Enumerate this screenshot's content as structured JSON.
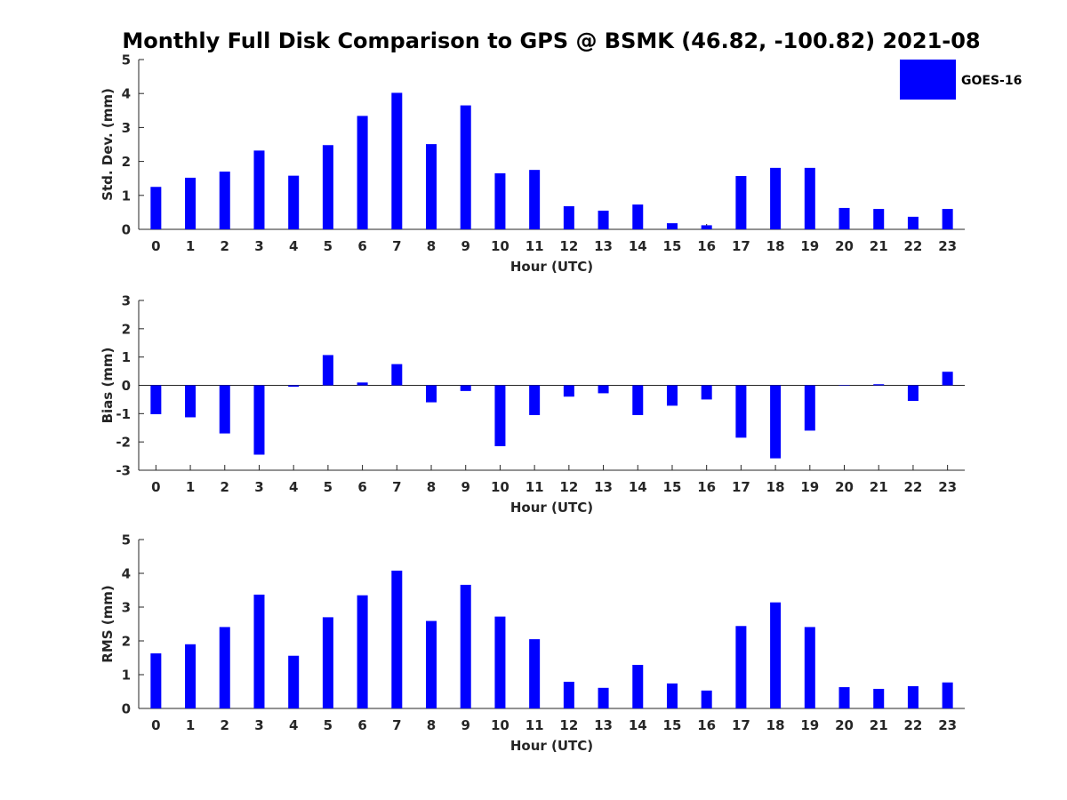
{
  "title": "Monthly Full Disk Comparison to GPS @ BSMK (46.82, -100.82) 2021-08",
  "legend": {
    "label": "GOES-16",
    "color": "#0000ff",
    "position": "top-right"
  },
  "chart_data": [
    {
      "type": "bar",
      "ylabel": "Std. Dev. (mm)",
      "xlabel": "Hour (UTC)",
      "ylim": [
        0,
        5
      ],
      "yticks": [
        0,
        1,
        2,
        3,
        4,
        5
      ],
      "categories": [
        "0",
        "1",
        "2",
        "3",
        "4",
        "5",
        "6",
        "7",
        "8",
        "9",
        "10",
        "11",
        "12",
        "13",
        "14",
        "15",
        "16",
        "17",
        "18",
        "19",
        "20",
        "21",
        "22",
        "23"
      ],
      "series": [
        {
          "name": "GOES-16",
          "color": "#0000ff",
          "values": [
            1.25,
            1.52,
            1.7,
            2.32,
            1.58,
            2.48,
            3.34,
            4.02,
            2.51,
            3.65,
            1.65,
            1.75,
            0.68,
            0.55,
            0.73,
            0.18,
            0.12,
            1.57,
            1.81,
            1.81,
            0.63,
            0.6,
            0.37,
            0.6
          ]
        }
      ]
    },
    {
      "type": "bar",
      "ylabel": "Bias (mm)",
      "xlabel": "Hour (UTC)",
      "ylim": [
        -3,
        3
      ],
      "yticks": [
        -3,
        -2,
        -1,
        0,
        1,
        2,
        3
      ],
      "categories": [
        "0",
        "1",
        "2",
        "3",
        "4",
        "5",
        "6",
        "7",
        "8",
        "9",
        "10",
        "11",
        "12",
        "13",
        "14",
        "15",
        "16",
        "17",
        "18",
        "19",
        "20",
        "21",
        "22",
        "23"
      ],
      "series": [
        {
          "name": "GOES-16",
          "color": "#0000ff",
          "values": [
            -1.02,
            -1.13,
            -1.7,
            -2.45,
            -0.05,
            1.07,
            0.1,
            0.75,
            -0.6,
            -0.2,
            -2.15,
            -1.05,
            -0.4,
            -0.28,
            -1.05,
            -0.72,
            -0.5,
            -1.85,
            -2.58,
            -1.6,
            0.0,
            0.04,
            -0.55,
            0.48
          ]
        }
      ]
    },
    {
      "type": "bar",
      "ylabel": "RMS (mm)",
      "xlabel": "Hour (UTC)",
      "ylim": [
        0,
        5
      ],
      "yticks": [
        0,
        1,
        2,
        3,
        4,
        5
      ],
      "categories": [
        "0",
        "1",
        "2",
        "3",
        "4",
        "5",
        "6",
        "7",
        "8",
        "9",
        "10",
        "11",
        "12",
        "13",
        "14",
        "15",
        "16",
        "17",
        "18",
        "19",
        "20",
        "21",
        "22",
        "23"
      ],
      "series": [
        {
          "name": "GOES-16",
          "color": "#0000ff",
          "values": [
            1.63,
            1.9,
            2.41,
            3.37,
            1.56,
            2.7,
            3.35,
            4.08,
            2.59,
            3.66,
            2.72,
            2.05,
            0.79,
            0.61,
            1.29,
            0.74,
            0.53,
            2.44,
            3.14,
            2.41,
            0.63,
            0.58,
            0.66,
            0.77
          ]
        }
      ]
    }
  ]
}
